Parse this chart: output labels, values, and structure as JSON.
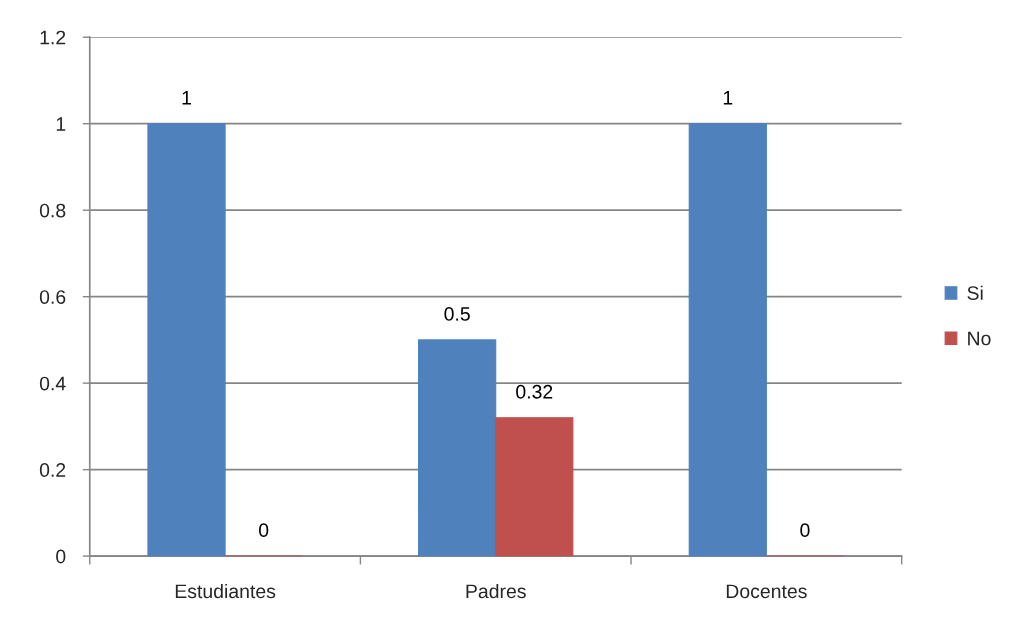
{
  "chart_data": {
    "type": "bar",
    "categories": [
      "Estudiantes",
      "Padres",
      "Docentes"
    ],
    "series": [
      {
        "name": "Si",
        "color": "#4f81bd",
        "values": [
          1,
          0.5,
          1
        ]
      },
      {
        "name": "No",
        "color": "#c0504d",
        "values": [
          0,
          0.32,
          0
        ]
      }
    ],
    "ylim": [
      0,
      1.2
    ],
    "yticks": [
      0,
      0.2,
      0.4,
      0.6,
      0.8,
      1,
      1.2
    ],
    "grid": "y",
    "legend": "right",
    "data_labels": true
  }
}
